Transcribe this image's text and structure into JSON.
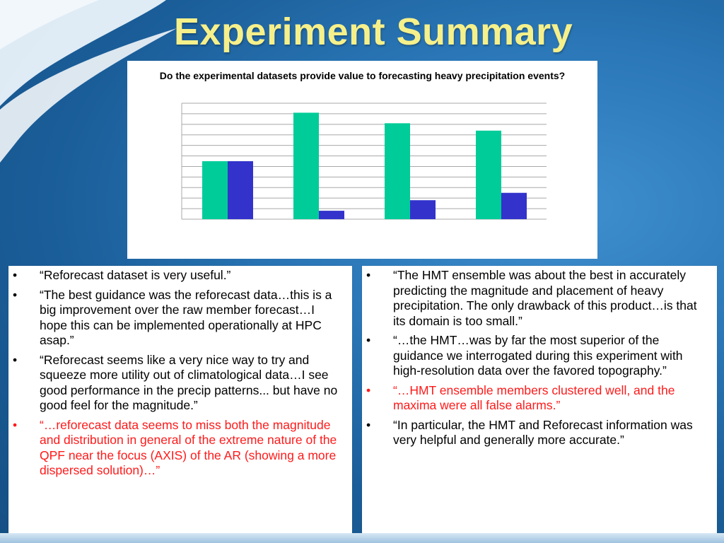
{
  "slide": {
    "title": "Experiment Summary",
    "colors": {
      "title": "#f6f08a",
      "background": "#2a76b6",
      "highlight_text": "#ff1a1a"
    }
  },
  "chart_data": {
    "type": "bar",
    "title": "Do the experimental datasets provide value to forecasting heavy precipitation events?",
    "xlabel": "",
    "ylabel": "",
    "ylim": [
      0,
      11
    ],
    "grid": true,
    "categories": [
      "",
      "",
      "",
      ""
    ],
    "series": [
      {
        "values": [
          5.5,
          10.1,
          9.1,
          8.4
        ],
        "color": "#00cc99"
      },
      {
        "values": [
          5.5,
          0.8,
          1.8,
          2.5
        ],
        "color": "#3333cc"
      }
    ]
  },
  "left_box": {
    "items": [
      {
        "bullet": "•",
        "text": "“Reforecast dataset is very useful.”",
        "highlight": false
      },
      {
        "bullet": "•",
        "text": "“The best guidance was the reforecast data…this is a big improvement over the raw member forecast…I hope this can be implemented operationally at HPC asap.”",
        "highlight": false
      },
      {
        "bullet": "•",
        "text": "“Reforecast seems like a very nice way to try and squeeze more utility out of climatological data…I see good performance in the precip patterns... but have no good feel for the magnitude.”",
        "highlight": false
      },
      {
        "bullet": "•",
        "text": "“…reforecast data seems to miss both the magnitude and distribution in general of the extreme nature of the QPF near the focus (AXIS) of the AR (showing a more dispersed solution)…”",
        "highlight": true
      }
    ]
  },
  "right_box": {
    "items": [
      {
        "bullet": "•",
        "text": "“The HMT ensemble was about the best in accurately predicting the magnitude and placement of heavy precipitation. The only drawback of this product…is that its domain is too small.”",
        "highlight": false
      },
      {
        "bullet": "•",
        "text": "“…the HMT…was by far the most superior of the guidance we interrogated during this experiment with high-resolution data over the favored topography.”",
        "highlight": false
      },
      {
        "bullet": "•",
        "text": "“…HMT ensemble members clustered well, and the maxima were all false alarms.”",
        "highlight": true
      },
      {
        "bullet": "•",
        "text": "“In particular, the HMT and Reforecast information was very helpful and generally more accurate.”",
        "highlight": false
      }
    ]
  }
}
